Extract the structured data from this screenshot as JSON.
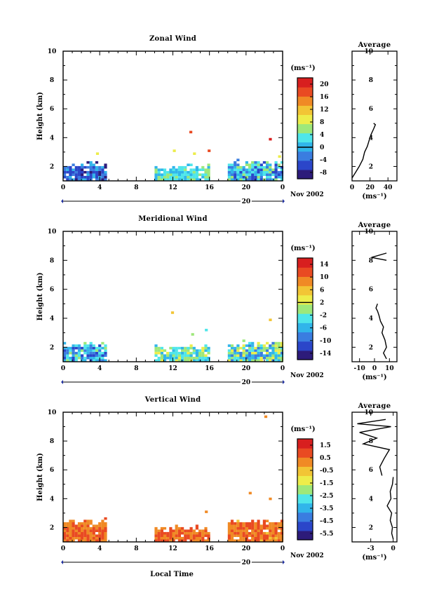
{
  "figure": {
    "x_axis_label": "Local Time",
    "date_label": "Nov 2002",
    "day_label": "20"
  },
  "colors": {
    "jet": [
      "#2d1b7a",
      "#2b46c9",
      "#3a7de0",
      "#31b5ea",
      "#4fe6ea",
      "#9ee87a",
      "#eded4a",
      "#f2c535",
      "#f08a25",
      "#e94a22",
      "#d81f1f"
    ]
  },
  "chart_data": [
    {
      "type": "heatmap",
      "title": "Zonal Wind",
      "ylabel": "Height (km)",
      "xlabel": "Local Time",
      "x_ticks": [
        "0",
        "4",
        "8",
        "12",
        "16",
        "20",
        "0"
      ],
      "y_ticks": [
        "2",
        "4",
        "6",
        "8",
        "10"
      ],
      "xlim": [
        0,
        24
      ],
      "ylim": [
        1,
        10
      ],
      "colorbar": {
        "unit": "(ms⁻¹)",
        "range": [
          -10,
          22
        ],
        "ticks": [
          "20",
          "16",
          "12",
          "8",
          "4",
          "0",
          "-4",
          "-8"
        ],
        "marker": 0
      },
      "data_blocks": [
        {
          "t": [
            0,
            4.7
          ],
          "h": [
            1.0,
            2.3
          ],
          "mean": -4,
          "spread": 5
        },
        {
          "t": [
            10,
            16
          ],
          "h": [
            1.0,
            2.1
          ],
          "mean": 3,
          "spread": 3
        },
        {
          "t": [
            18,
            24
          ],
          "h": [
            1.0,
            2.4
          ],
          "mean": 0,
          "spread": 7
        }
      ],
      "scatter_cells": [
        {
          "t": 13.8,
          "h": 4.3,
          "v": 18
        },
        {
          "t": 15.8,
          "h": 3.0,
          "v": 19
        },
        {
          "t": 22.5,
          "h": 3.8,
          "v": 21
        },
        {
          "t": 12,
          "h": 3.0,
          "v": 9
        },
        {
          "t": 14.2,
          "h": 2.8,
          "v": 8
        },
        {
          "t": 23.5,
          "h": 2.6,
          "v": 10
        },
        {
          "t": 3.6,
          "h": 2.8,
          "v": 10
        }
      ],
      "average_profile": {
        "title": "Average",
        "xlabel": "(ms⁻¹)",
        "x_ticks": [
          "0",
          "20",
          "40"
        ],
        "xlim": [
          0,
          50
        ],
        "y_ticks": [
          "2",
          "4",
          "6",
          "8",
          "10"
        ],
        "points": [
          [
            0,
            1.2
          ],
          [
            4,
            1.6
          ],
          [
            8,
            2.0
          ],
          [
            12,
            2.5
          ],
          [
            14,
            3.0
          ],
          [
            17,
            3.4
          ],
          [
            19,
            3.8
          ],
          [
            21,
            4.2
          ],
          [
            24,
            4.6
          ],
          [
            26,
            4.9
          ],
          [
            24,
            5.0
          ]
        ]
      }
    },
    {
      "type": "heatmap",
      "title": "Meridional Wind",
      "ylabel": "Height (km)",
      "xlabel": "Local Time",
      "x_ticks": [
        "0",
        "4",
        "8",
        "12",
        "16",
        "20",
        "0"
      ],
      "y_ticks": [
        "2",
        "4",
        "6",
        "8",
        "10"
      ],
      "xlim": [
        0,
        24
      ],
      "ylim": [
        1,
        10
      ],
      "colorbar": {
        "unit": "(ms⁻¹)",
        "range": [
          -16,
          16
        ],
        "ticks": [
          "14",
          "10",
          "6",
          "2",
          "-2",
          "-6",
          "-10",
          "-14"
        ],
        "marker": 2
      },
      "data_blocks": [
        {
          "t": [
            0,
            4.7
          ],
          "h": [
            1.0,
            2.3
          ],
          "mean": -6,
          "spread": 6
        },
        {
          "t": [
            10,
            16
          ],
          "h": [
            1.0,
            2.1
          ],
          "mean": -2,
          "spread": 5
        },
        {
          "t": [
            18,
            24
          ],
          "h": [
            1.0,
            2.4
          ],
          "mean": -3,
          "spread": 7
        }
      ],
      "scatter_cells": [
        {
          "t": 11.8,
          "h": 4.3,
          "v": 5
        },
        {
          "t": 22.5,
          "h": 3.8,
          "v": 7
        },
        {
          "t": 15.5,
          "h": 3.1,
          "v": -3
        },
        {
          "t": 14,
          "h": 2.8,
          "v": -1
        }
      ],
      "average_profile": {
        "title": "Average",
        "xlabel": "(ms⁻¹)",
        "x_ticks": [
          "-10",
          "0",
          "10"
        ],
        "xlim": [
          -15,
          15
        ],
        "y_ticks": [
          "2",
          "4",
          "6",
          "8",
          "10"
        ],
        "points": [
          [
            8,
            1.2
          ],
          [
            6,
            1.6
          ],
          [
            8,
            2.0
          ],
          [
            7,
            2.5
          ],
          [
            5,
            3.0
          ],
          [
            6,
            3.4
          ],
          [
            4,
            3.8
          ],
          [
            3,
            4.2
          ],
          [
            2,
            4.5
          ],
          [
            1,
            4.7
          ],
          [
            2,
            5.0
          ]
        ],
        "points_upper": [
          [
            8,
            8.5
          ],
          [
            -2,
            8.2
          ],
          [
            8,
            8.0
          ]
        ]
      }
    },
    {
      "type": "heatmap",
      "title": "Vertical Wind",
      "ylabel": "Height (km)",
      "xlabel": "Local Time",
      "x_ticks": [
        "0",
        "4",
        "8",
        "12",
        "16",
        "20",
        "0"
      ],
      "y_ticks": [
        "2",
        "4",
        "6",
        "8",
        "10"
      ],
      "xlim": [
        0,
        24
      ],
      "ylim": [
        1,
        10
      ],
      "colorbar": {
        "unit": "(ms⁻¹)",
        "range": [
          -7,
          2
        ],
        "ticks": [
          "1.5",
          "0.5",
          "-0.5",
          "-1.5",
          "-2.5",
          "-3.5",
          "-4.5",
          "-5.5"
        ],
        "marker": null
      },
      "data_blocks": [
        {
          "t": [
            0,
            4.7
          ],
          "h": [
            1.0,
            2.6
          ],
          "mean": 0.3,
          "spread": 0.6
        },
        {
          "t": [
            10,
            16
          ],
          "h": [
            1.0,
            2.1
          ],
          "mean": 0.4,
          "spread": 0.5
        },
        {
          "t": [
            18,
            24
          ],
          "h": [
            1.0,
            2.5
          ],
          "mean": 0.2,
          "spread": 0.7
        }
      ],
      "scatter_cells": [
        {
          "t": 22.5,
          "h": 3.9,
          "v": 0.2
        },
        {
          "t": 22.0,
          "h": 9.6,
          "v": -0.2
        },
        {
          "t": 15.5,
          "h": 3.0,
          "v": 0.1
        },
        {
          "t": 20.3,
          "h": 4.3,
          "v": -0.3
        }
      ],
      "average_profile": {
        "title": "Average",
        "xlabel": "(ms⁻¹)",
        "x_ticks": [
          "-3",
          "0"
        ],
        "xlim": [
          -5.5,
          0.5
        ],
        "y_ticks": [
          "2",
          "4",
          "6",
          "8",
          "10"
        ],
        "points": [
          [
            0,
            1.2
          ],
          [
            -0.2,
            1.6
          ],
          [
            -0.1,
            2.0
          ],
          [
            -0.4,
            2.5
          ],
          [
            -0.2,
            3.0
          ],
          [
            -0.8,
            3.5
          ],
          [
            -0.3,
            4.0
          ],
          [
            -0.4,
            4.5
          ],
          [
            -0.1,
            5.0
          ],
          [
            0,
            5.5
          ]
        ],
        "points_upper": [
          [
            -1.5,
            5.6
          ],
          [
            -1.8,
            6.2
          ],
          [
            -1.2,
            6.8
          ],
          [
            -0.5,
            7.4
          ],
          [
            -4.0,
            7.8
          ],
          [
            -2.2,
            8.2
          ],
          [
            -4.5,
            8.6
          ],
          [
            -0.3,
            9.0
          ],
          [
            -4.8,
            9.2
          ],
          [
            -1.0,
            9.5
          ]
        ]
      }
    }
  ]
}
